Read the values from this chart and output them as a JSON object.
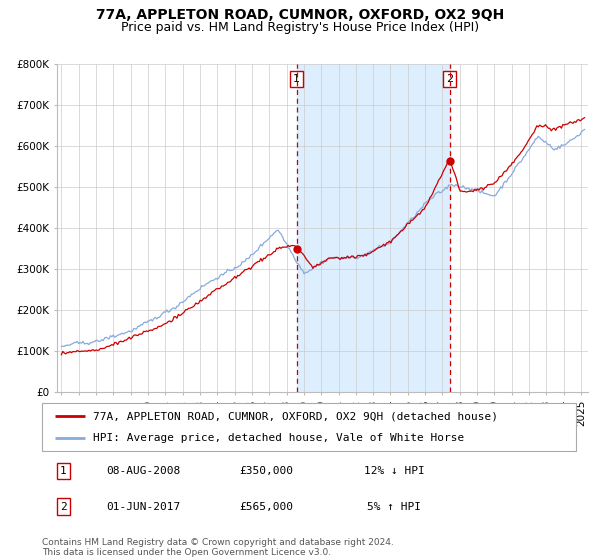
{
  "title": "77A, APPLETON ROAD, CUMNOR, OXFORD, OX2 9QH",
  "subtitle": "Price paid vs. HM Land Registry's House Price Index (HPI)",
  "ylim": [
    0,
    800000
  ],
  "yticks": [
    0,
    100000,
    200000,
    300000,
    400000,
    500000,
    600000,
    700000,
    800000
  ],
  "ytick_labels": [
    "£0",
    "£100K",
    "£200K",
    "£300K",
    "£400K",
    "£500K",
    "£600K",
    "£700K",
    "£800K"
  ],
  "xlim_start": 1994.75,
  "xlim_end": 2025.4,
  "shaded_region_start": 2008.58,
  "shaded_region_end": 2017.42,
  "vline1_x": 2008.58,
  "vline2_x": 2017.42,
  "marker1_x": 2008.58,
  "marker1_y": 350000,
  "marker2_x": 2017.42,
  "marker2_y": 565000,
  "red_line_color": "#cc0000",
  "blue_line_color": "#88aadd",
  "marker_color": "#cc0000",
  "vline_color": "#cc0000",
  "shaded_color": "#ddeeff",
  "grid_color": "#cccccc",
  "background_color": "#ffffff",
  "legend_line1": "77A, APPLETON ROAD, CUMNOR, OXFORD, OX2 9QH (detached house)",
  "legend_line2": "HPI: Average price, detached house, Vale of White Horse",
  "annotation1_label": "1",
  "annotation1_date": "08-AUG-2008",
  "annotation1_price": "£350,000",
  "annotation1_hpi": "12% ↓ HPI",
  "annotation2_label": "2",
  "annotation2_date": "01-JUN-2017",
  "annotation2_price": "£565,000",
  "annotation2_hpi": "5% ↑ HPI",
  "footer": "Contains HM Land Registry data © Crown copyright and database right 2024.\nThis data is licensed under the Open Government Licence v3.0.",
  "title_fontsize": 10,
  "subtitle_fontsize": 9,
  "tick_fontsize": 7.5,
  "legend_fontsize": 8,
  "annotation_fontsize": 8,
  "footer_fontsize": 6.5
}
